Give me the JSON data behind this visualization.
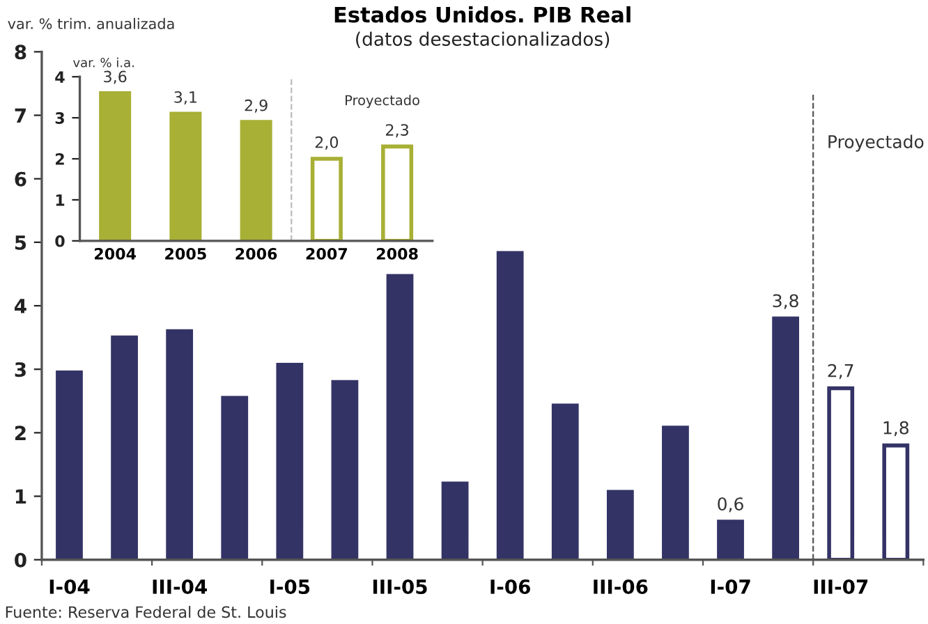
{
  "chart_data": [
    {
      "type": "bar",
      "title": "Estados Unidos. PIB Real",
      "subtitle": "(datos desestacionalizados)",
      "ylabel": "var. % trim. anualizada",
      "categories": [
        "I-04",
        null,
        "III-04",
        null,
        "I-05",
        null,
        "III-05",
        null,
        "I-06",
        null,
        "III-06",
        null,
        "I-07",
        null,
        "III-07",
        null
      ],
      "series": [
        {
          "color": "#333366",
          "values": [
            2.95,
            3.5,
            3.6,
            2.55,
            3.07,
            2.8,
            4.47,
            1.2,
            4.83,
            2.43,
            1.07,
            2.08,
            0.6,
            3.8,
            2.7,
            1.8
          ],
          "colors": [
            "#333366",
            "#333366",
            "#333366",
            "#333366",
            "#333366",
            "#333366",
            "#333366",
            "#333366",
            "#333366",
            "#333366",
            "#333366",
            "#333366",
            "#333366",
            "#333366",
            "#ffffff",
            "#ffffff"
          ],
          "value_labels": [
            null,
            null,
            null,
            null,
            null,
            null,
            null,
            null,
            null,
            null,
            null,
            null,
            "0,6",
            "3,8",
            "2,7",
            "1,8"
          ]
        }
      ],
      "ylim": [
        0,
        8
      ],
      "yticks": [
        0,
        1,
        2,
        3,
        4,
        5,
        6,
        7,
        8
      ],
      "annotations": [
        "Proyectado",
        "Fuente: Reserva Federal de St. Louis"
      ]
    },
    {
      "type": "bar",
      "ylabel": "var. % i.a.",
      "categories": [
        "2004",
        "2005",
        "2006",
        "2007",
        "2008"
      ],
      "series": [
        {
          "color": "#a8b035",
          "values": [
            3.6,
            3.1,
            2.9,
            2.0,
            2.3
          ],
          "colors": [
            "#a8b035",
            "#a8b035",
            "#a8b035",
            "#ffffff",
            "#ffffff"
          ],
          "value_labels": [
            "3,6",
            "3,1",
            "2,9",
            "2,0",
            "2,3"
          ]
        }
      ],
      "ylim": [
        0,
        4
      ],
      "yticks": [
        0,
        1,
        2,
        3,
        4
      ],
      "annotations": [
        "Proyectado"
      ]
    }
  ]
}
